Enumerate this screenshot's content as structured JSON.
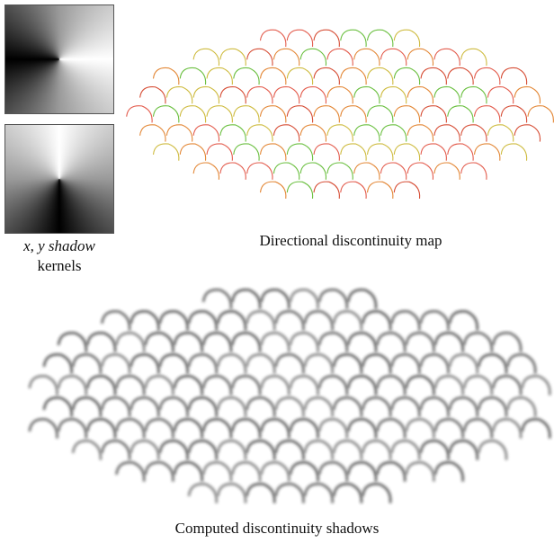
{
  "figure": {
    "kernel_caption": {
      "line1": "x, y shadow",
      "line2": "kernels"
    },
    "map_caption": "Directional discontinuity map",
    "shadow_caption": "Computed discontinuity shadows"
  }
}
